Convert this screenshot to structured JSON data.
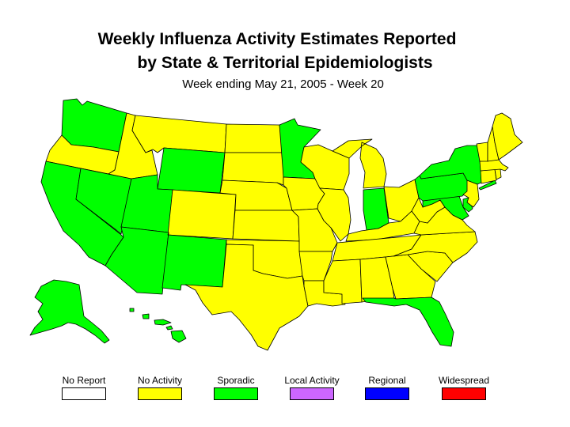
{
  "title_line1": "Weekly Influenza Activity Estimates Reported",
  "title_line2": "by State & Territorial Epidemiologists",
  "subtitle": "Week ending May 21, 2005 - Week 20",
  "colors": {
    "no_report": "#ffffff",
    "no_activity": "#ffff00",
    "sporadic": "#00ff00",
    "local_activity": "#cc66ff",
    "regional": "#0000ff",
    "widespread": "#ff0000"
  },
  "legend": [
    {
      "key": "no_report",
      "label": "No Report"
    },
    {
      "key": "no_activity",
      "label": "No Activity"
    },
    {
      "key": "sporadic",
      "label": "Sporadic"
    },
    {
      "key": "local_activity",
      "label": "Local Activity"
    },
    {
      "key": "regional",
      "label": "Regional"
    },
    {
      "key": "widespread",
      "label": "Widespread"
    }
  ],
  "state_activity": {
    "WA": "sporadic",
    "OR": "no_activity",
    "CA": "sporadic",
    "NV": "sporadic",
    "ID": "no_activity",
    "MT": "no_activity",
    "WY": "sporadic",
    "UT": "sporadic",
    "AZ": "sporadic",
    "NM": "sporadic",
    "CO": "no_activity",
    "ND": "no_activity",
    "SD": "no_activity",
    "NE": "no_activity",
    "KS": "no_activity",
    "OK": "no_activity",
    "TX": "no_activity",
    "MN": "sporadic",
    "IA": "no_activity",
    "MO": "no_activity",
    "AR": "no_activity",
    "LA": "no_activity",
    "WI": "no_activity",
    "IL": "no_activity",
    "MI": "no_activity",
    "IN": "sporadic",
    "OH": "no_activity",
    "KY": "no_activity",
    "TN": "no_activity",
    "MS": "no_activity",
    "AL": "no_activity",
    "GA": "no_activity",
    "FL": "sporadic",
    "SC": "no_activity",
    "NC": "no_activity",
    "VA": "no_activity",
    "WV": "no_activity",
    "MD": "sporadic",
    "DE": "sporadic",
    "PA": "sporadic",
    "NJ": "no_activity",
    "NY": "sporadic",
    "CT": "no_activity",
    "RI": "no_activity",
    "MA": "no_activity",
    "VT": "no_activity",
    "NH": "no_activity",
    "ME": "no_activity",
    "AK": "sporadic",
    "HI": "sporadic"
  }
}
